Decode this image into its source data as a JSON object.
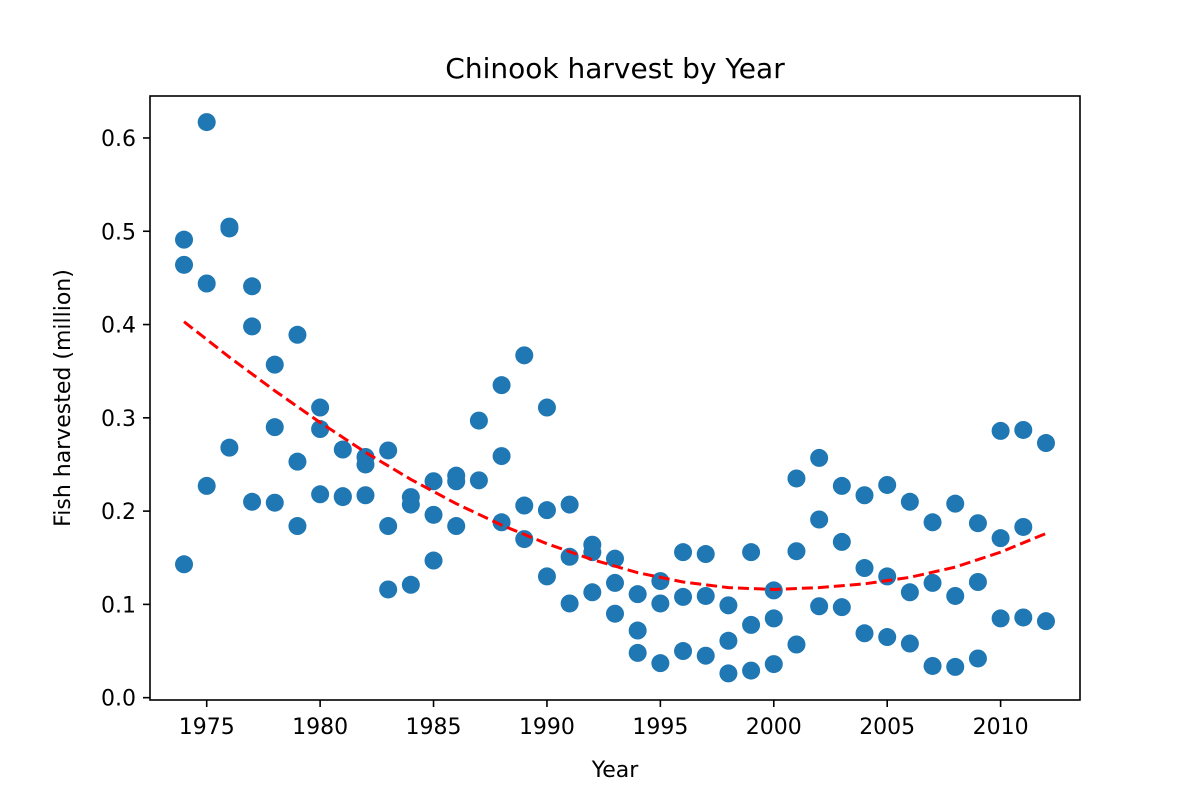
{
  "chart_data": {
    "type": "scatter",
    "title": "Chinook harvest by Year",
    "xlabel": "Year",
    "ylabel": "Fish harvested (million)",
    "xlim": [
      1972.5,
      2013.5
    ],
    "ylim": [
      -0.0025,
      0.645
    ],
    "xticks": [
      1975,
      1980,
      1985,
      1990,
      1995,
      2000,
      2005,
      2010
    ],
    "yticks": [
      0.0,
      0.1,
      0.2,
      0.3,
      0.4,
      0.5,
      0.6
    ],
    "ytick_labels": [
      "0.0",
      "0.1",
      "0.2",
      "0.3",
      "0.4",
      "0.5",
      "0.6"
    ],
    "grid": false,
    "legend": "none",
    "marker_color": "#1f77b4",
    "trend_color": "#ff0000",
    "points": [
      [
        1974,
        0.491
      ],
      [
        1974,
        0.464
      ],
      [
        1974,
        0.143
      ],
      [
        1975,
        0.617
      ],
      [
        1975,
        0.444
      ],
      [
        1975,
        0.227
      ],
      [
        1976,
        0.505
      ],
      [
        1976,
        0.503
      ],
      [
        1976,
        0.268
      ],
      [
        1977,
        0.441
      ],
      [
        1977,
        0.398
      ],
      [
        1977,
        0.21
      ],
      [
        1978,
        0.357
      ],
      [
        1978,
        0.29
      ],
      [
        1978,
        0.209
      ],
      [
        1979,
        0.389
      ],
      [
        1979,
        0.253
      ],
      [
        1979,
        0.184
      ],
      [
        1980,
        0.311
      ],
      [
        1980,
        0.288
      ],
      [
        1980,
        0.218
      ],
      [
        1981,
        0.266
      ],
      [
        1981,
        0.215
      ],
      [
        1981,
        0.216
      ],
      [
        1982,
        0.258
      ],
      [
        1982,
        0.25
      ],
      [
        1982,
        0.217
      ],
      [
        1983,
        0.265
      ],
      [
        1983,
        0.184
      ],
      [
        1983,
        0.116
      ],
      [
        1984,
        0.215
      ],
      [
        1984,
        0.207
      ],
      [
        1984,
        0.121
      ],
      [
        1985,
        0.232
      ],
      [
        1985,
        0.196
      ],
      [
        1985,
        0.147
      ],
      [
        1986,
        0.238
      ],
      [
        1986,
        0.232
      ],
      [
        1986,
        0.184
      ],
      [
        1987,
        0.297
      ],
      [
        1987,
        0.233
      ],
      [
        1988,
        0.335
      ],
      [
        1988,
        0.259
      ],
      [
        1988,
        0.188
      ],
      [
        1989,
        0.367
      ],
      [
        1989,
        0.206
      ],
      [
        1989,
        0.17
      ],
      [
        1990,
        0.311
      ],
      [
        1990,
        0.201
      ],
      [
        1990,
        0.13
      ],
      [
        1991,
        0.207
      ],
      [
        1991,
        0.151
      ],
      [
        1991,
        0.101
      ],
      [
        1992,
        0.164
      ],
      [
        1992,
        0.156
      ],
      [
        1992,
        0.113
      ],
      [
        1993,
        0.149
      ],
      [
        1993,
        0.123
      ],
      [
        1993,
        0.09
      ],
      [
        1994,
        0.111
      ],
      [
        1994,
        0.072
      ],
      [
        1994,
        0.048
      ],
      [
        1995,
        0.125
      ],
      [
        1995,
        0.101
      ],
      [
        1995,
        0.037
      ],
      [
        1996,
        0.156
      ],
      [
        1996,
        0.108
      ],
      [
        1996,
        0.05
      ],
      [
        1997,
        0.154
      ],
      [
        1997,
        0.109
      ],
      [
        1997,
        0.045
      ],
      [
        1998,
        0.099
      ],
      [
        1998,
        0.061
      ],
      [
        1998,
        0.026
      ],
      [
        1999,
        0.156
      ],
      [
        1999,
        0.078
      ],
      [
        1999,
        0.029
      ],
      [
        2000,
        0.115
      ],
      [
        2000,
        0.085
      ],
      [
        2000,
        0.036
      ],
      [
        2001,
        0.235
      ],
      [
        2001,
        0.157
      ],
      [
        2001,
        0.057
      ],
      [
        2002,
        0.257
      ],
      [
        2002,
        0.191
      ],
      [
        2002,
        0.098
      ],
      [
        2003,
        0.227
      ],
      [
        2003,
        0.167
      ],
      [
        2003,
        0.097
      ],
      [
        2004,
        0.217
      ],
      [
        2004,
        0.139
      ],
      [
        2004,
        0.069
      ],
      [
        2005,
        0.228
      ],
      [
        2005,
        0.13
      ],
      [
        2005,
        0.065
      ],
      [
        2006,
        0.21
      ],
      [
        2006,
        0.113
      ],
      [
        2006,
        0.058
      ],
      [
        2007,
        0.188
      ],
      [
        2007,
        0.123
      ],
      [
        2007,
        0.034
      ],
      [
        2008,
        0.208
      ],
      [
        2008,
        0.109
      ],
      [
        2008,
        0.033
      ],
      [
        2009,
        0.187
      ],
      [
        2009,
        0.124
      ],
      [
        2009,
        0.042
      ],
      [
        2010,
        0.286
      ],
      [
        2010,
        0.171
      ],
      [
        2010,
        0.085
      ],
      [
        2011,
        0.287
      ],
      [
        2011,
        0.183
      ],
      [
        2011,
        0.086
      ],
      [
        2012,
        0.273
      ],
      [
        2012,
        0.082
      ]
    ],
    "trend": {
      "style": "dashed",
      "x": [
        1974,
        1976,
        1978,
        1980,
        1982,
        1984,
        1986,
        1988,
        1990,
        1992,
        1994,
        1996,
        1998,
        2000,
        2002,
        2004,
        2006,
        2008,
        2010,
        2012
      ],
      "y": [
        0.403,
        0.365,
        0.329,
        0.295,
        0.263,
        0.234,
        0.208,
        0.185,
        0.165,
        0.148,
        0.134,
        0.124,
        0.118,
        0.116,
        0.118,
        0.122,
        0.129,
        0.14,
        0.156,
        0.176
      ]
    }
  }
}
